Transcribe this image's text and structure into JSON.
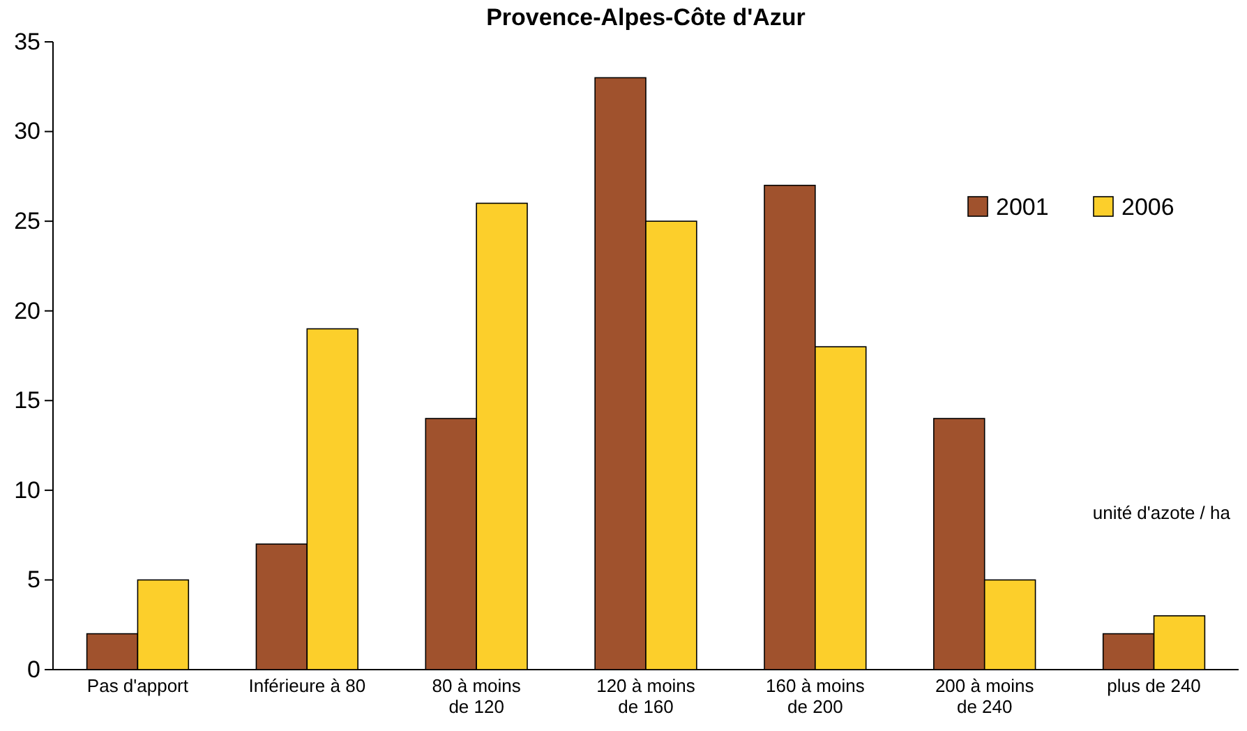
{
  "chart_data": {
    "type": "bar",
    "title": "Provence-Alpes-Côte d'Azur",
    "categories": [
      "Pas d'apport",
      "Inférieure à 80",
      "80 à moins de 120",
      "120 à moins de 160",
      "160 à moins de 200",
      "200 à moins de 240",
      "plus de 240"
    ],
    "series": [
      {
        "name": "2001",
        "color": "#a0522d",
        "values": [
          2,
          7,
          14,
          33,
          27,
          14,
          2
        ]
      },
      {
        "name": "2006",
        "color": "#fccf2b",
        "values": [
          5,
          19,
          26,
          25,
          18,
          5,
          3
        ]
      }
    ],
    "ylim": [
      0,
      35
    ],
    "yticks": [
      0,
      5,
      10,
      15,
      20,
      25,
      30,
      35
    ],
    "grid": false,
    "legend": "top right",
    "annotations": [
      {
        "text": "unité d'azote / ha"
      }
    ]
  }
}
